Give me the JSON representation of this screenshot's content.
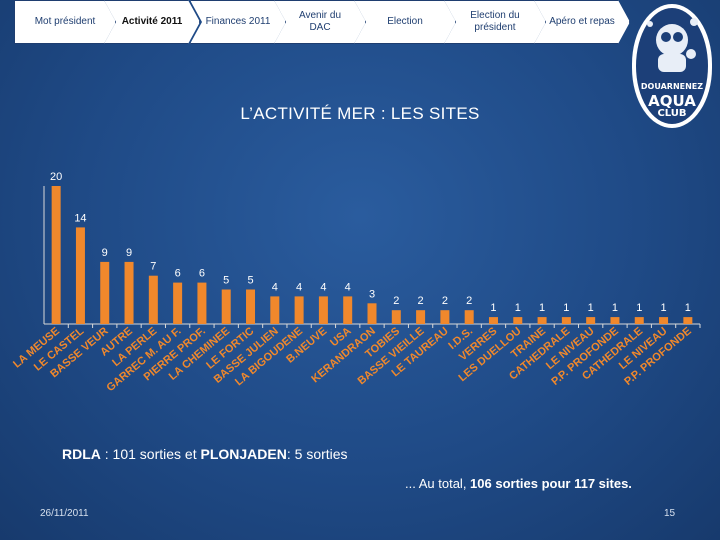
{
  "nav": {
    "items": [
      {
        "label": "Mot président",
        "active": false
      },
      {
        "label": "Activité 2011",
        "active": true
      },
      {
        "label": "Finances 2011",
        "active": false
      },
      {
        "label": "Avenir du DAC",
        "active": false
      },
      {
        "label": "Election",
        "active": false
      },
      {
        "label": "Election du président",
        "active": false
      },
      {
        "label": "Apéro et repas",
        "active": false
      }
    ]
  },
  "slide": {
    "title": "L’ACTIVITÉ MER : LES SITES",
    "note_prefix": "RDLA",
    "note_middle": " : 101 sorties et ",
    "note_strong": "PLONJADEN",
    "note_suffix": ": 5 sorties",
    "total_prefix": "... Au total, ",
    "total_strong": "106 sorties pour 117 sites.",
    "date": "26/11/2011",
    "page_number": "15"
  },
  "logo": {
    "line1": "DOUARNENEZ",
    "line2": "AQUA",
    "line3": "CLUB",
    "icon": "diver-mascot-icon"
  },
  "colors": {
    "bar": "#f0882c",
    "background": "#1f4a86",
    "text": "#ffffff"
  },
  "chart_data": {
    "type": "bar",
    "title": "",
    "xlabel": "",
    "ylabel": "",
    "ylim": [
      0,
      20
    ],
    "grid": false,
    "categories": [
      "LA MEUSE",
      "LE CASTEL",
      "BASSE VEUR",
      "AUTRE",
      "LA PERLE",
      "GARREC M. AU F.",
      "PIERRE PROF.",
      "LA CHEMINEE",
      "LE FORTIC",
      "BASSE JULIEN",
      "LA BIGOUDENE",
      "B.NEUVE",
      "USA",
      "KERANDRAON",
      "TOBIES",
      "BASSE VIEILLE",
      "LE TAUREAU",
      "I.D.S.",
      "VERRES",
      "LES DUELLOU",
      "TRAINE",
      "CATHEDRALE",
      "LE NIVEAU",
      "P.P. PROFONDE",
      "CATHEDRALE",
      "LE NIVEAU",
      "P.P. PROFONDE"
    ],
    "values": [
      20,
      14,
      9,
      9,
      7,
      6,
      6,
      5,
      5,
      4,
      4,
      4,
      4,
      3,
      2,
      2,
      2,
      2,
      1,
      1,
      1,
      1,
      1,
      1,
      1,
      1,
      1
    ]
  }
}
